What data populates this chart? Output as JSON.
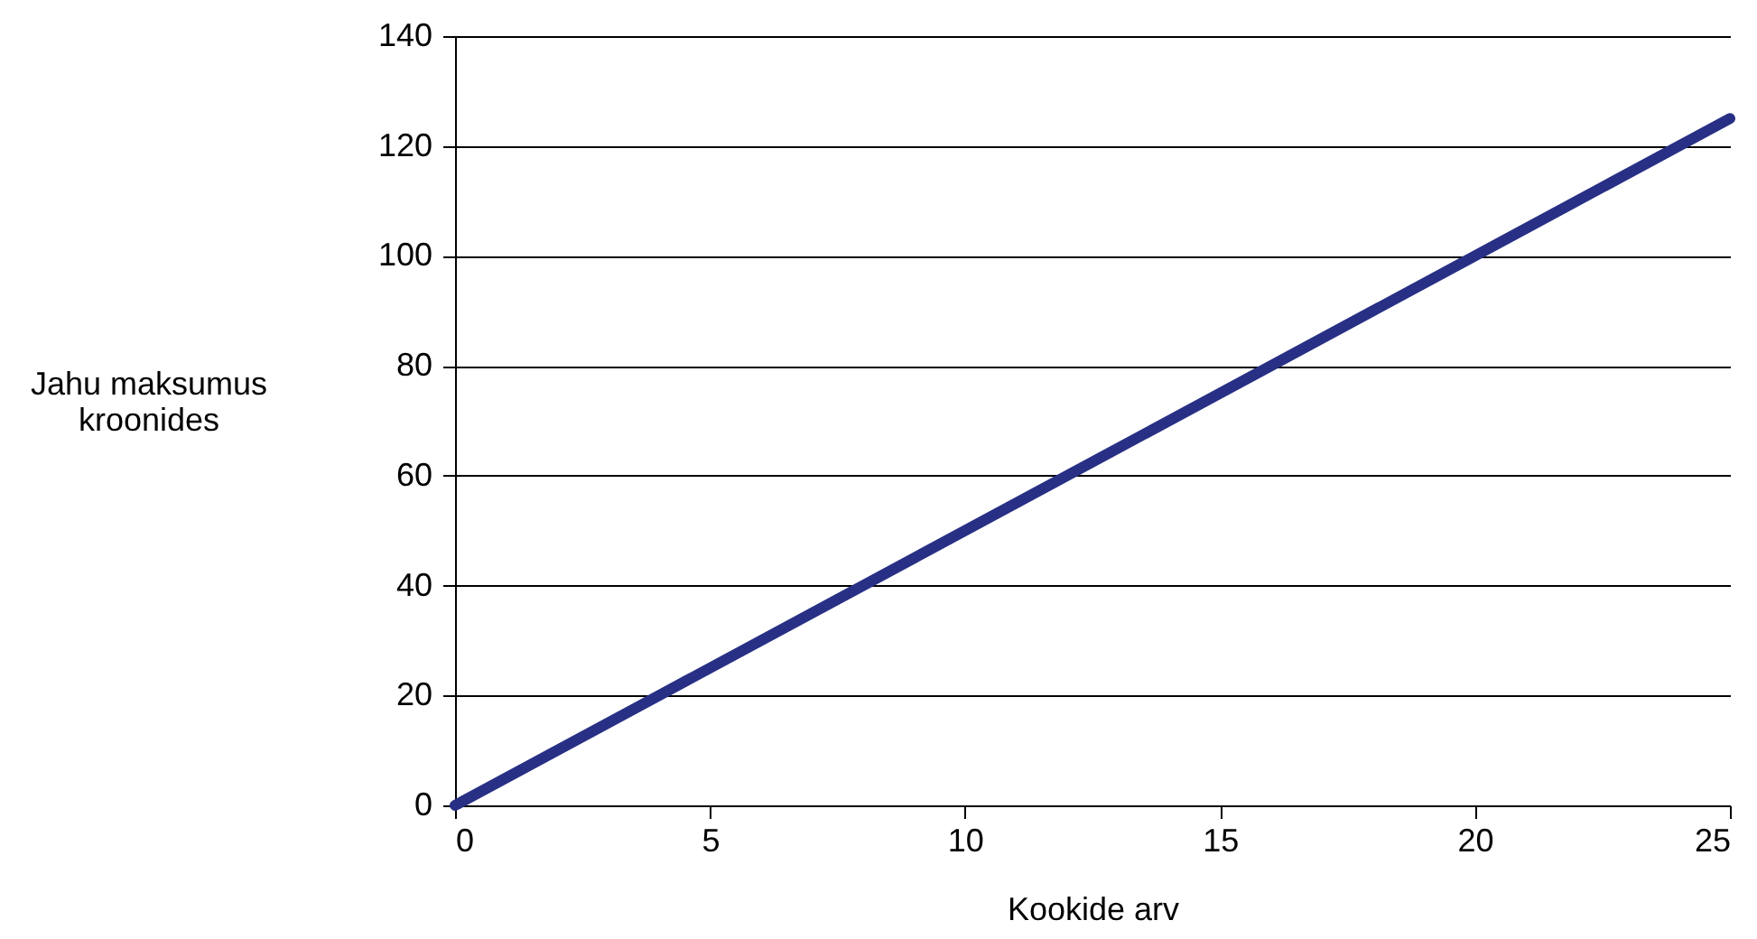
{
  "chart_data": {
    "type": "line",
    "xlabel": "Kookide arv",
    "ylabel": "Jahu maksumus kroonides",
    "x": [
      0,
      25
    ],
    "series": [
      {
        "color": "#283085",
        "values": [
          0,
          125
        ]
      }
    ],
    "xlim": [
      0,
      25
    ],
    "xticks": [
      0,
      5,
      10,
      15,
      20,
      25
    ],
    "ylim": [
      0,
      140
    ],
    "yticks": [
      0,
      20,
      40,
      60,
      80,
      100,
      120,
      140
    ],
    "grid": "y",
    "marker": "none",
    "line_style": "solid"
  }
}
